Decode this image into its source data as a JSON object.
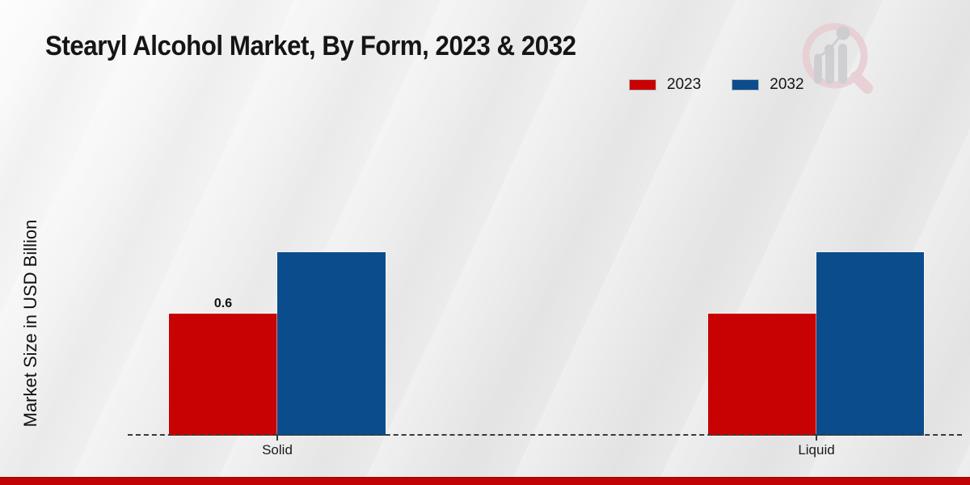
{
  "page": {
    "title": "Stearyl Alcohol Market, By Form, 2023 & 2032"
  },
  "chart_data": {
    "type": "bar",
    "title": "Stearyl Alcohol Market, By Form, 2023 & 2032",
    "xlabel": "",
    "ylabel": "Market Size in USD Billion",
    "categories": [
      "Solid",
      "Liquid"
    ],
    "series": [
      {
        "name": "2023",
        "color": "#c80202",
        "values": [
          0.6,
          0.6
        ],
        "data_labels": [
          "0.6",
          ""
        ]
      },
      {
        "name": "2032",
        "color": "#0b4d8c",
        "values": [
          0.9,
          0.9
        ],
        "data_labels": [
          "",
          ""
        ]
      }
    ],
    "ylim": [
      0,
      1.2
    ],
    "grid": false,
    "legend_position": "top-right",
    "baseline_style": "dashed",
    "axis_color": "#3a3a3a"
  },
  "branding": {
    "watermark_icon": "magnifier-bar-chart-logo",
    "watermark_ring_color": "#e8cdd2",
    "watermark_bar_color": "#cbcbcf",
    "accent_bar_color": "#c00404"
  },
  "background": {
    "gradient_start": "#fcfcfc",
    "gradient_end": "#e8e8e8"
  }
}
